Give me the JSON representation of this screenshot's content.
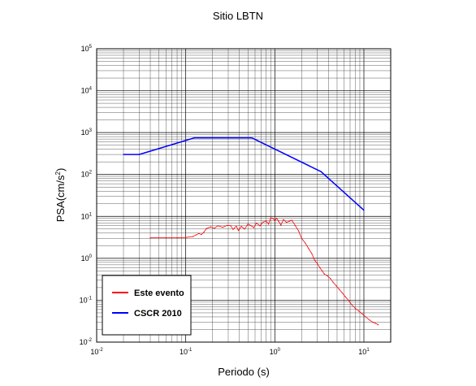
{
  "chart_data": {
    "type": "line",
    "title": "Sitio LBTN",
    "xlabel": "Periodo (s)",
    "ylabel_main": "PSA(cm/s",
    "ylabel_sup": "2",
    "ylabel_close": ")",
    "x_scale": "log",
    "y_scale": "log",
    "xlim": [
      0.01,
      20
    ],
    "ylim": [
      0.01,
      100000
    ],
    "x_ticks": [
      {
        "base": "10",
        "exp": "-2",
        "value": 0.01
      },
      {
        "base": "10",
        "exp": "-1",
        "value": 0.1
      },
      {
        "base": "10",
        "exp": "0",
        "value": 1
      },
      {
        "base": "10",
        "exp": "1",
        "value": 10
      }
    ],
    "y_ticks": [
      {
        "base": "10",
        "exp": "-2",
        "value": 0.01
      },
      {
        "base": "10",
        "exp": "-1",
        "value": 0.1
      },
      {
        "base": "10",
        "exp": "0",
        "value": 1
      },
      {
        "base": "10",
        "exp": "1",
        "value": 10
      },
      {
        "base": "10",
        "exp": "2",
        "value": 100
      },
      {
        "base": "10",
        "exp": "3",
        "value": 1000
      },
      {
        "base": "10",
        "exp": "4",
        "value": 10000
      },
      {
        "base": "10",
        "exp": "5",
        "value": 100000
      }
    ],
    "grid": true,
    "legend_position": "bottom-left",
    "series": [
      {
        "name": "Este evento",
        "color": "#ff0000",
        "stroke": "thin",
        "points": [
          [
            0.04,
            3.1
          ],
          [
            0.06,
            3.1
          ],
          [
            0.08,
            3.1
          ],
          [
            0.1,
            3.15
          ],
          [
            0.12,
            3.3
          ],
          [
            0.13,
            3.6
          ],
          [
            0.14,
            3.9
          ],
          [
            0.15,
            3.7
          ],
          [
            0.16,
            4.2
          ],
          [
            0.17,
            5.1
          ],
          [
            0.19,
            5.6
          ],
          [
            0.21,
            5.2
          ],
          [
            0.23,
            6.0
          ],
          [
            0.26,
            5.5
          ],
          [
            0.29,
            6.1
          ],
          [
            0.32,
            6.0
          ],
          [
            0.34,
            4.9
          ],
          [
            0.37,
            5.9
          ],
          [
            0.39,
            4.6
          ],
          [
            0.42,
            5.8
          ],
          [
            0.46,
            5.0
          ],
          [
            0.5,
            6.6
          ],
          [
            0.54,
            6.0
          ],
          [
            0.58,
            5.4
          ],
          [
            0.62,
            6.9
          ],
          [
            0.68,
            6.0
          ],
          [
            0.74,
            7.3
          ],
          [
            0.8,
            7.8
          ],
          [
            0.85,
            6.5
          ],
          [
            0.9,
            9.2
          ],
          [
            0.95,
            9.0
          ],
          [
            1.0,
            7.9
          ],
          [
            1.05,
            9.0
          ],
          [
            1.1,
            7.7
          ],
          [
            1.17,
            6.2
          ],
          [
            1.25,
            8.4
          ],
          [
            1.35,
            7.2
          ],
          [
            1.45,
            7.6
          ],
          [
            1.55,
            8.1
          ],
          [
            1.7,
            6.0
          ],
          [
            1.85,
            4.5
          ],
          [
            2.0,
            3.0
          ],
          [
            2.2,
            2.3
          ],
          [
            2.4,
            1.7
          ],
          [
            2.6,
            1.3
          ],
          [
            2.8,
            0.9
          ],
          [
            3.0,
            0.75
          ],
          [
            3.2,
            0.6
          ],
          [
            3.4,
            0.5
          ],
          [
            3.6,
            0.42
          ],
          [
            3.9,
            0.38
          ],
          [
            4.2,
            0.33
          ],
          [
            4.5,
            0.27
          ],
          [
            4.9,
            0.22
          ],
          [
            5.3,
            0.18
          ],
          [
            5.7,
            0.15
          ],
          [
            6.2,
            0.12
          ],
          [
            6.7,
            0.1
          ],
          [
            7.3,
            0.078
          ],
          [
            8.0,
            0.064
          ],
          [
            8.8,
            0.055
          ],
          [
            9.6,
            0.047
          ],
          [
            10.5,
            0.04
          ],
          [
            11.5,
            0.034
          ],
          [
            12.5,
            0.03
          ],
          [
            13.5,
            0.028
          ],
          [
            14.5,
            0.026
          ]
        ]
      },
      {
        "name": "CSCR 2010",
        "color": "#0000ff",
        "stroke": "thick",
        "points": [
          [
            0.02,
            300
          ],
          [
            0.03,
            300
          ],
          [
            0.125,
            750
          ],
          [
            0.55,
            750
          ],
          [
            3.3,
            117
          ],
          [
            10,
            14
          ]
        ]
      }
    ]
  }
}
